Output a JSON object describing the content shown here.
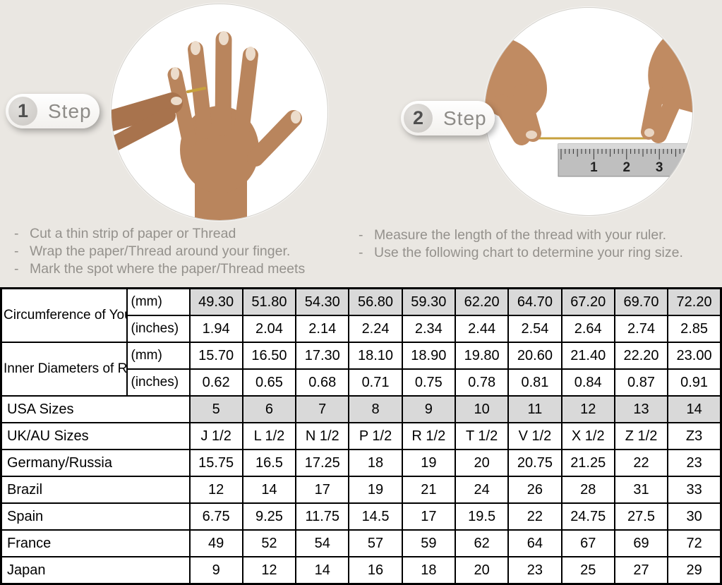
{
  "ui": {
    "bullet": "-",
    "background_color": "#eae7e2",
    "table_shaded_color": "#d9d9d9",
    "thread_color": "#c7a13d"
  },
  "steps": [
    {
      "number": "1",
      "label": "Step",
      "instructions": [
        "Cut a thin strip of paper or Thread",
        "Wrap the paper/Thread around your finger.",
        "Mark the spot where the paper/Thread meets"
      ]
    },
    {
      "number": "2",
      "label": "Step",
      "instructions": [
        "Measure the length of the thread with your ruler.",
        "Use the following chart to determine your ring size."
      ]
    }
  ],
  "illustrations": {
    "left_alt": "hand with thread wrapped around ring finger",
    "right_alt": "hands measuring thread length with ruler",
    "ruler_marks": [
      "1",
      "2",
      "3"
    ]
  },
  "table": {
    "row_groups": [
      {
        "label": "Circumference of Your Finger",
        "rows": [
          {
            "unit": "(mm)",
            "shaded": true,
            "values": [
              "49.30",
              "51.80",
              "54.30",
              "56.80",
              "59.30",
              "62.20",
              "64.70",
              "67.20",
              "69.70",
              "72.20"
            ]
          },
          {
            "unit": "(inches)",
            "shaded": false,
            "values": [
              "1.94",
              "2.04",
              "2.14",
              "2.24",
              "2.34",
              "2.44",
              "2.54",
              "2.64",
              "2.74",
              "2.85"
            ]
          }
        ]
      },
      {
        "label": "Inner Diameters of Rings",
        "rows": [
          {
            "unit": "(mm)",
            "shaded": false,
            "values": [
              "15.70",
              "16.50",
              "17.30",
              "18.10",
              "18.90",
              "19.80",
              "20.60",
              "21.40",
              "22.20",
              "23.00"
            ]
          },
          {
            "unit": "(inches)",
            "shaded": false,
            "values": [
              "0.62",
              "0.65",
              "0.68",
              "0.71",
              "0.75",
              "0.78",
              "0.81",
              "0.84",
              "0.87",
              "0.91"
            ]
          }
        ]
      }
    ],
    "size_rows": [
      {
        "label": "USA Sizes",
        "shaded": true,
        "values": [
          "5",
          "6",
          "7",
          "8",
          "9",
          "10",
          "11",
          "12",
          "13",
          "14"
        ]
      },
      {
        "label": "UK/AU Sizes",
        "shaded": false,
        "values": [
          "J 1/2",
          "L 1/2",
          "N 1/2",
          "P 1/2",
          "R 1/2",
          "T 1/2",
          "V 1/2",
          "X 1/2",
          "Z 1/2",
          "Z3"
        ]
      },
      {
        "label": "Germany/Russia",
        "shaded": false,
        "values": [
          "15.75",
          "16.5",
          "17.25",
          "18",
          "19",
          "20",
          "20.75",
          "21.25",
          "22",
          "23"
        ]
      },
      {
        "label": "Brazil",
        "shaded": false,
        "values": [
          "12",
          "14",
          "17",
          "19",
          "21",
          "24",
          "26",
          "28",
          "31",
          "33"
        ]
      },
      {
        "label": "Spain",
        "shaded": false,
        "values": [
          "6.75",
          "9.25",
          "11.75",
          "14.5",
          "17",
          "19.5",
          "22",
          "24.75",
          "27.5",
          "30"
        ]
      },
      {
        "label": "France",
        "shaded": false,
        "values": [
          "49",
          "52",
          "54",
          "57",
          "59",
          "62",
          "64",
          "67",
          "69",
          "72"
        ]
      },
      {
        "label": "Japan",
        "shaded": false,
        "values": [
          "9",
          "12",
          "14",
          "16",
          "18",
          "20",
          "23",
          "25",
          "27",
          "29"
        ]
      }
    ]
  }
}
